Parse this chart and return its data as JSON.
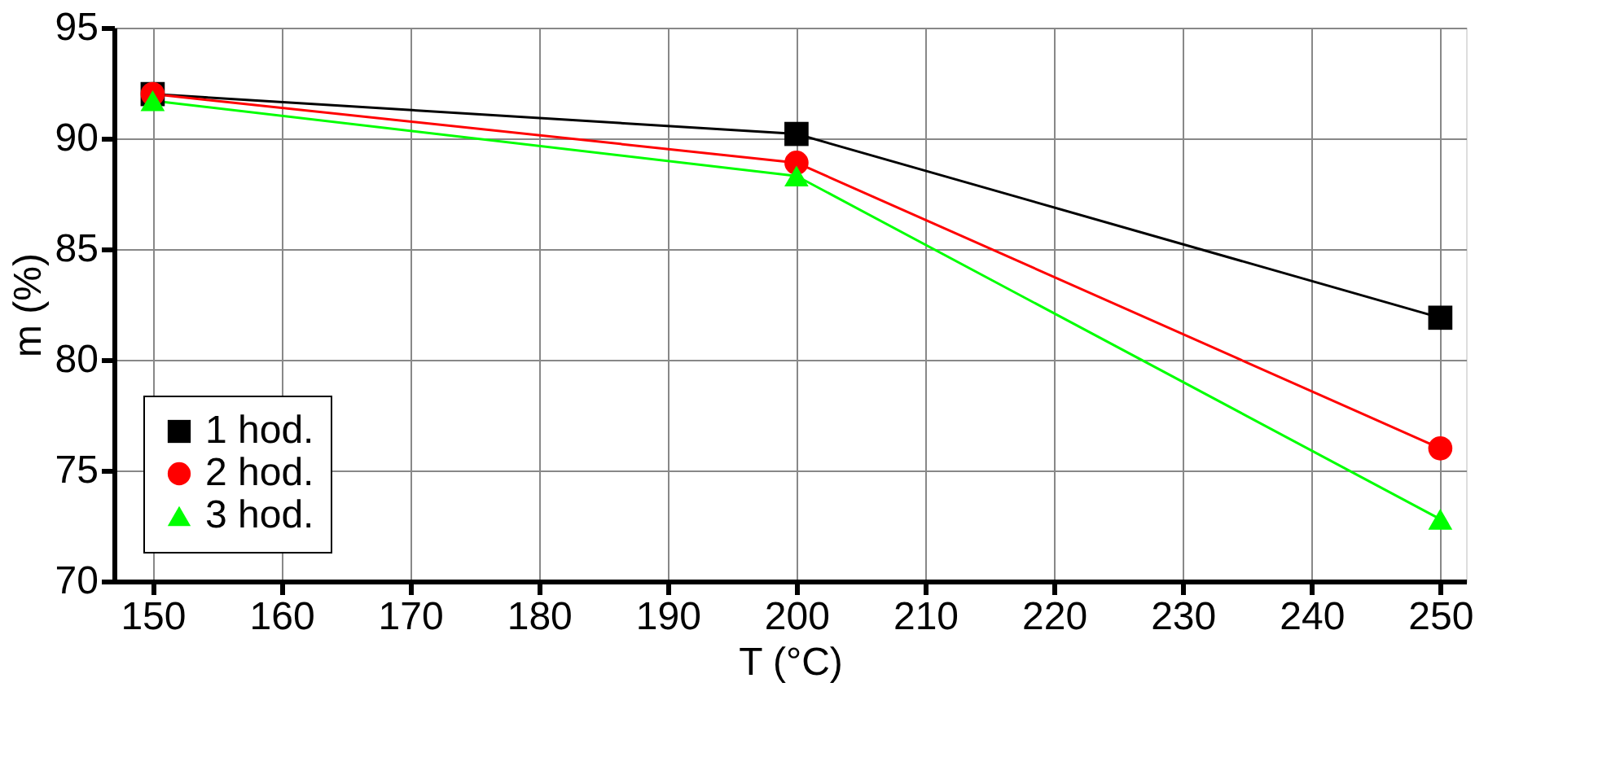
{
  "chart_data": {
    "type": "line",
    "xlabel": "T (°C)",
    "ylabel": "m (%)",
    "x": [
      150,
      200,
      250
    ],
    "series": [
      {
        "name": "1 hod.",
        "color": "#000000",
        "marker": "square",
        "values": [
          92.0,
          90.2,
          81.9
        ]
      },
      {
        "name": "2 hod.",
        "color": "#ff0000",
        "marker": "circle",
        "values": [
          92.0,
          88.9,
          76.0
        ]
      },
      {
        "name": "3 hod.",
        "color": "#00ff00",
        "marker": "triangle",
        "values": [
          91.7,
          88.3,
          72.8
        ]
      }
    ],
    "xlim": [
      147,
      252
    ],
    "xticks": [
      150,
      160,
      170,
      180,
      190,
      200,
      210,
      220,
      230,
      240,
      250
    ],
    "ylim": [
      70,
      95
    ],
    "yticks": [
      70,
      75,
      80,
      85,
      90,
      95
    ],
    "grid": true,
    "legend": "bottom left",
    "line_style": "solid"
  }
}
